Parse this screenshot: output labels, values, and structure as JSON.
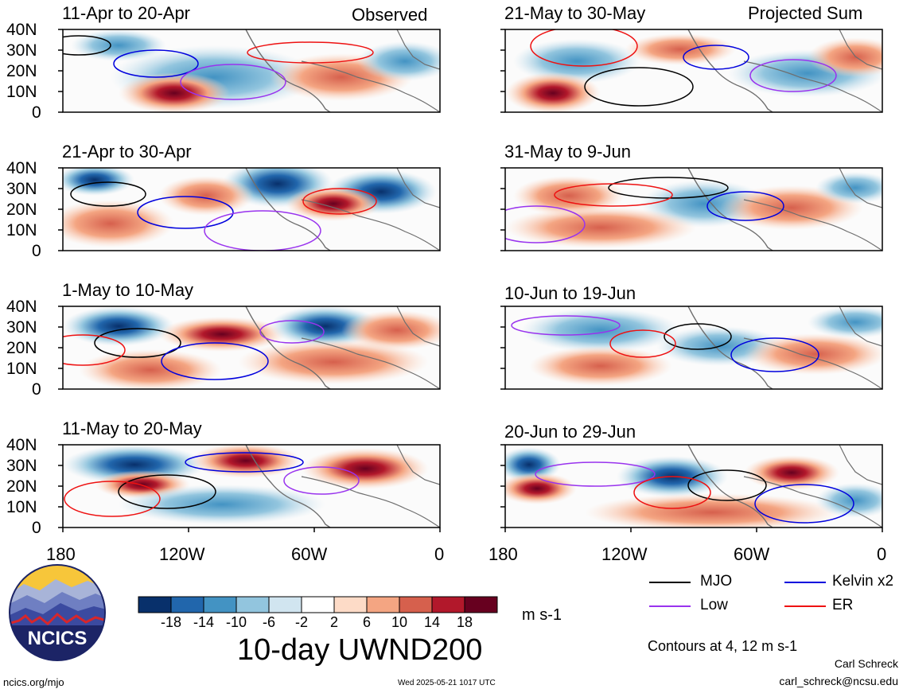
{
  "header": {
    "left": "Observed",
    "right": "Projected Sum"
  },
  "panels": [
    {
      "period": "11-Apr to 20-Apr"
    },
    {
      "period": "21-Apr to 30-Apr"
    },
    {
      "period": "1-May to 10-May"
    },
    {
      "period": "11-May to 20-May"
    },
    {
      "period": "21-May to 30-May"
    },
    {
      "period": "31-May to 9-Jun"
    },
    {
      "period": "10-Jun to 19-Jun"
    },
    {
      "period": "20-Jun to 29-Jun"
    }
  ],
  "axes": {
    "lat_ticks": [
      "40N",
      "30N",
      "20N",
      "10N",
      "0"
    ],
    "lon_ticks": [
      "180",
      "120W",
      "60W",
      "0"
    ]
  },
  "colorbar": {
    "colors": [
      "#08306b",
      "#2166ac",
      "#4393c3",
      "#92c5de",
      "#d1e5f0",
      "#ffffff",
      "#fddbc7",
      "#f4a582",
      "#d6604d",
      "#b2182b",
      "#67001f"
    ],
    "tick_labels": [
      "-18",
      "-14",
      "-10",
      "-6",
      "-2",
      "2",
      "6",
      "10",
      "14",
      "18"
    ],
    "units": "m s-1"
  },
  "legend": {
    "items": [
      {
        "label": "MJO",
        "color": "#000000"
      },
      {
        "label": "Kelvin x2",
        "color": "#0000dd"
      },
      {
        "label": "Low",
        "color": "#9933ee"
      },
      {
        "label": "ER",
        "color": "#ee1111"
      }
    ],
    "contours_note": "Contours at 4, 12 m s-1"
  },
  "title": "10-day UWND200",
  "logo": {
    "text": "NCICS"
  },
  "footer": {
    "url": "ncics.org/mjo",
    "timestamp": "Wed 2025-05-21 1017 UTC",
    "author": "Carl Schreck",
    "email": "carl_schreck@ncsu.edu"
  }
}
